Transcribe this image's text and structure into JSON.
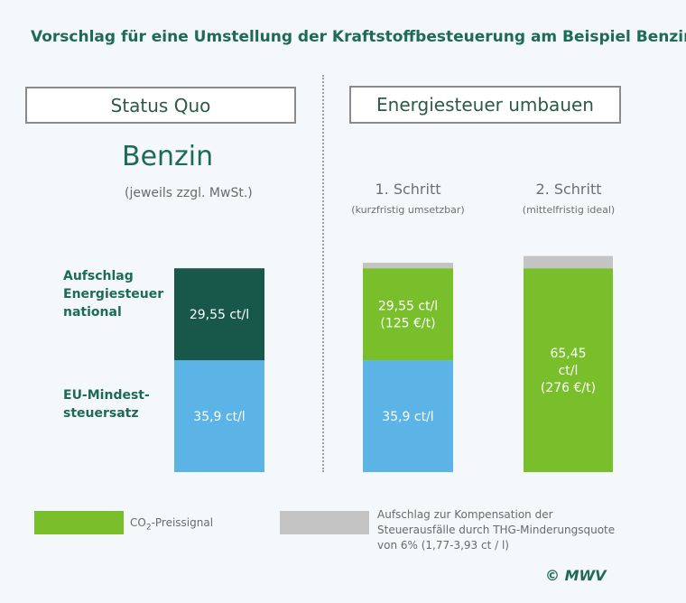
{
  "title": "Vorschlag für eine Umstellung der Kraftstoffbesteuerung am Beispiel Benzin",
  "headers": {
    "status_quo": "Status Quo",
    "reform": "Energiesteuer umbauen"
  },
  "fuel": {
    "name": "Benzin",
    "note": "(jeweils zzgl. MwSt.)"
  },
  "row_labels": {
    "surcharge": [
      "Aufschlag",
      "Energiesteuer",
      "national"
    ],
    "eu_minimum": [
      "EU-Mindest-",
      "steuersatz"
    ]
  },
  "steps": [
    {
      "title": "1. Schritt",
      "subtitle": "(kurzfristig umsetzbar)"
    },
    {
      "title": "2. Schritt",
      "subtitle": "(mittelfristig ideal)"
    }
  ],
  "colors": {
    "dark_green": "#17584a",
    "light_blue": "#5cb3e6",
    "lime_green": "#79bf2c",
    "gray": "#c4c4c4",
    "accent": "#1d6b52"
  },
  "chart_data": {
    "type": "stacked-bar",
    "unit": "ct/l",
    "categories": [
      "Status Quo",
      "1. Schritt",
      "2. Schritt"
    ],
    "series": [
      {
        "name": "EU-Mindeststeuersatz",
        "color": "light_blue",
        "values": [
          35.9,
          35.9,
          0
        ],
        "labels": [
          [
            "35,9 ct/l"
          ],
          [
            "35,9 ct/l"
          ],
          []
        ]
      },
      {
        "name": "Aufschlag Energiesteuer national",
        "color": "dark_green",
        "values": [
          29.55,
          0,
          0
        ],
        "labels": [
          [
            "29,55 ct/l"
          ],
          [],
          []
        ]
      },
      {
        "name": "CO2-Preissignal",
        "color": "lime_green",
        "values": [
          0,
          29.55,
          65.45
        ],
        "labels": [
          [],
          [
            "29,55 ct/l",
            "(125 €/t)"
          ],
          [
            "65,45",
            "ct/l",
            "(276 €/t)"
          ]
        ]
      },
      {
        "name": "Aufschlag zur Kompensation",
        "color": "gray",
        "values": [
          0,
          1.77,
          3.93
        ],
        "labels": [
          [],
          [],
          []
        ]
      }
    ],
    "ylim": [
      0,
      70
    ]
  },
  "legend": {
    "co2_prefix": "CO",
    "co2_sub": "2",
    "co2_suffix": "-Preissignal",
    "compensation": [
      "Aufschlag zur Kompensation der",
      "Steuerausfälle durch THG-Minderungsquote",
      "von 6% (1,77-3,93 ct / l)"
    ]
  },
  "copyright": "© MWV"
}
